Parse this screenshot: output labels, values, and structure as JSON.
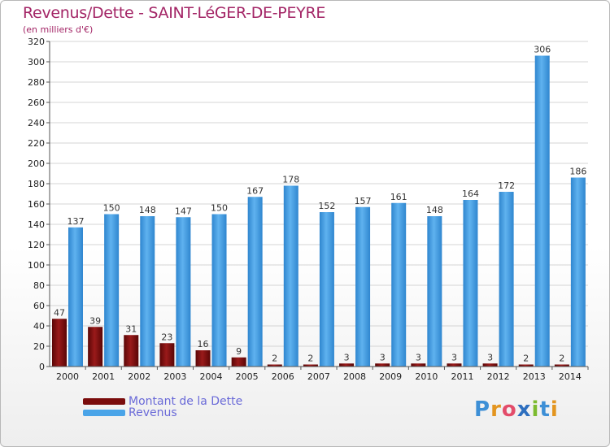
{
  "title": "Revenus/Dette - SAINT-LéGER-DE-PEYRE",
  "subtitle": "(en milliers d'€)",
  "logo": {
    "text": "Proxiti",
    "letters": [
      "P",
      "r",
      "o",
      "x",
      "i",
      "t",
      "i"
    ],
    "colors": [
      "#3d8fd6",
      "#e3951f",
      "#e34c6a",
      "#2e6fbf",
      "#7cbb2f",
      "#3d8fd6",
      "#e3951f"
    ]
  },
  "legend": [
    {
      "label": "Montant de la Dette",
      "color": "#7a0c0c"
    },
    {
      "label": "Revenus",
      "color": "#4aa4e8"
    }
  ],
  "chart_data": {
    "type": "bar",
    "categories": [
      "2000",
      "2001",
      "2002",
      "2003",
      "2004",
      "2005",
      "2006",
      "2007",
      "2008",
      "2009",
      "2010",
      "2011",
      "2012",
      "2013",
      "2014"
    ],
    "series": [
      {
        "name": "Montant de la Dette",
        "color": "#7a0c0c",
        "values": [
          47,
          39,
          31,
          23,
          16,
          9,
          2,
          2,
          3,
          3,
          3,
          3,
          3,
          2,
          2
        ]
      },
      {
        "name": "Revenus",
        "color": "#4aa4e8",
        "values": [
          137,
          150,
          148,
          147,
          150,
          167,
          178,
          152,
          157,
          161,
          148,
          164,
          172,
          306,
          186
        ]
      }
    ],
    "ylim": [
      0,
      320
    ],
    "yticks": [
      0,
      20,
      40,
      60,
      80,
      100,
      120,
      140,
      160,
      180,
      200,
      220,
      240,
      260,
      280,
      300,
      320
    ],
    "grid": true,
    "legend_position": "bottom-left"
  }
}
